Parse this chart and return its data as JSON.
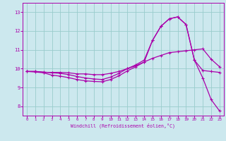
{
  "background_color": "#cce8ee",
  "line_color": "#aa00aa",
  "grid_color": "#99cccc",
  "xlabel": "Windchill (Refroidissement éolien,°C)",
  "tick_color": "#aa00aa",
  "xlim": [
    -0.5,
    23.5
  ],
  "ylim": [
    7.5,
    13.5
  ],
  "yticks": [
    8,
    9,
    10,
    11,
    12,
    13
  ],
  "xticks": [
    0,
    1,
    2,
    3,
    4,
    5,
    6,
    7,
    8,
    9,
    10,
    11,
    12,
    13,
    14,
    15,
    16,
    17,
    18,
    19,
    20,
    21,
    22,
    23
  ],
  "line1_x": [
    0,
    1,
    2,
    3,
    4,
    5,
    6,
    7,
    8,
    9,
    10,
    11,
    12,
    13,
    14,
    15,
    16,
    17,
    18,
    19,
    20,
    21,
    22,
    23
  ],
  "line1_y": [
    9.85,
    9.85,
    9.8,
    9.8,
    9.8,
    9.78,
    9.72,
    9.72,
    9.68,
    9.68,
    9.75,
    9.85,
    10.0,
    10.15,
    10.35,
    10.55,
    10.7,
    10.85,
    10.9,
    10.95,
    11.0,
    11.05,
    10.5,
    10.1
  ],
  "line2_x": [
    0,
    1,
    2,
    3,
    4,
    5,
    6,
    7,
    8,
    9,
    10,
    11,
    12,
    13,
    14,
    15,
    16,
    17,
    18,
    19,
    20,
    21,
    22,
    23
  ],
  "line2_y": [
    9.85,
    9.85,
    9.82,
    9.78,
    9.75,
    9.68,
    9.58,
    9.5,
    9.45,
    9.42,
    9.55,
    9.75,
    10.0,
    10.2,
    10.45,
    11.5,
    12.25,
    12.65,
    12.75,
    12.35,
    10.45,
    9.9,
    9.85,
    9.8
  ],
  "line3_x": [
    0,
    1,
    2,
    3,
    4,
    5,
    6,
    7,
    8,
    9,
    10,
    11,
    12,
    13,
    14,
    15,
    16,
    17,
    18,
    19,
    20,
    21,
    22,
    23
  ],
  "line3_y": [
    9.85,
    9.82,
    9.78,
    9.65,
    9.6,
    9.52,
    9.42,
    9.35,
    9.32,
    9.3,
    9.42,
    9.62,
    9.88,
    10.1,
    10.35,
    11.5,
    12.25,
    12.65,
    12.75,
    12.35,
    10.45,
    9.5,
    8.35,
    7.75
  ]
}
